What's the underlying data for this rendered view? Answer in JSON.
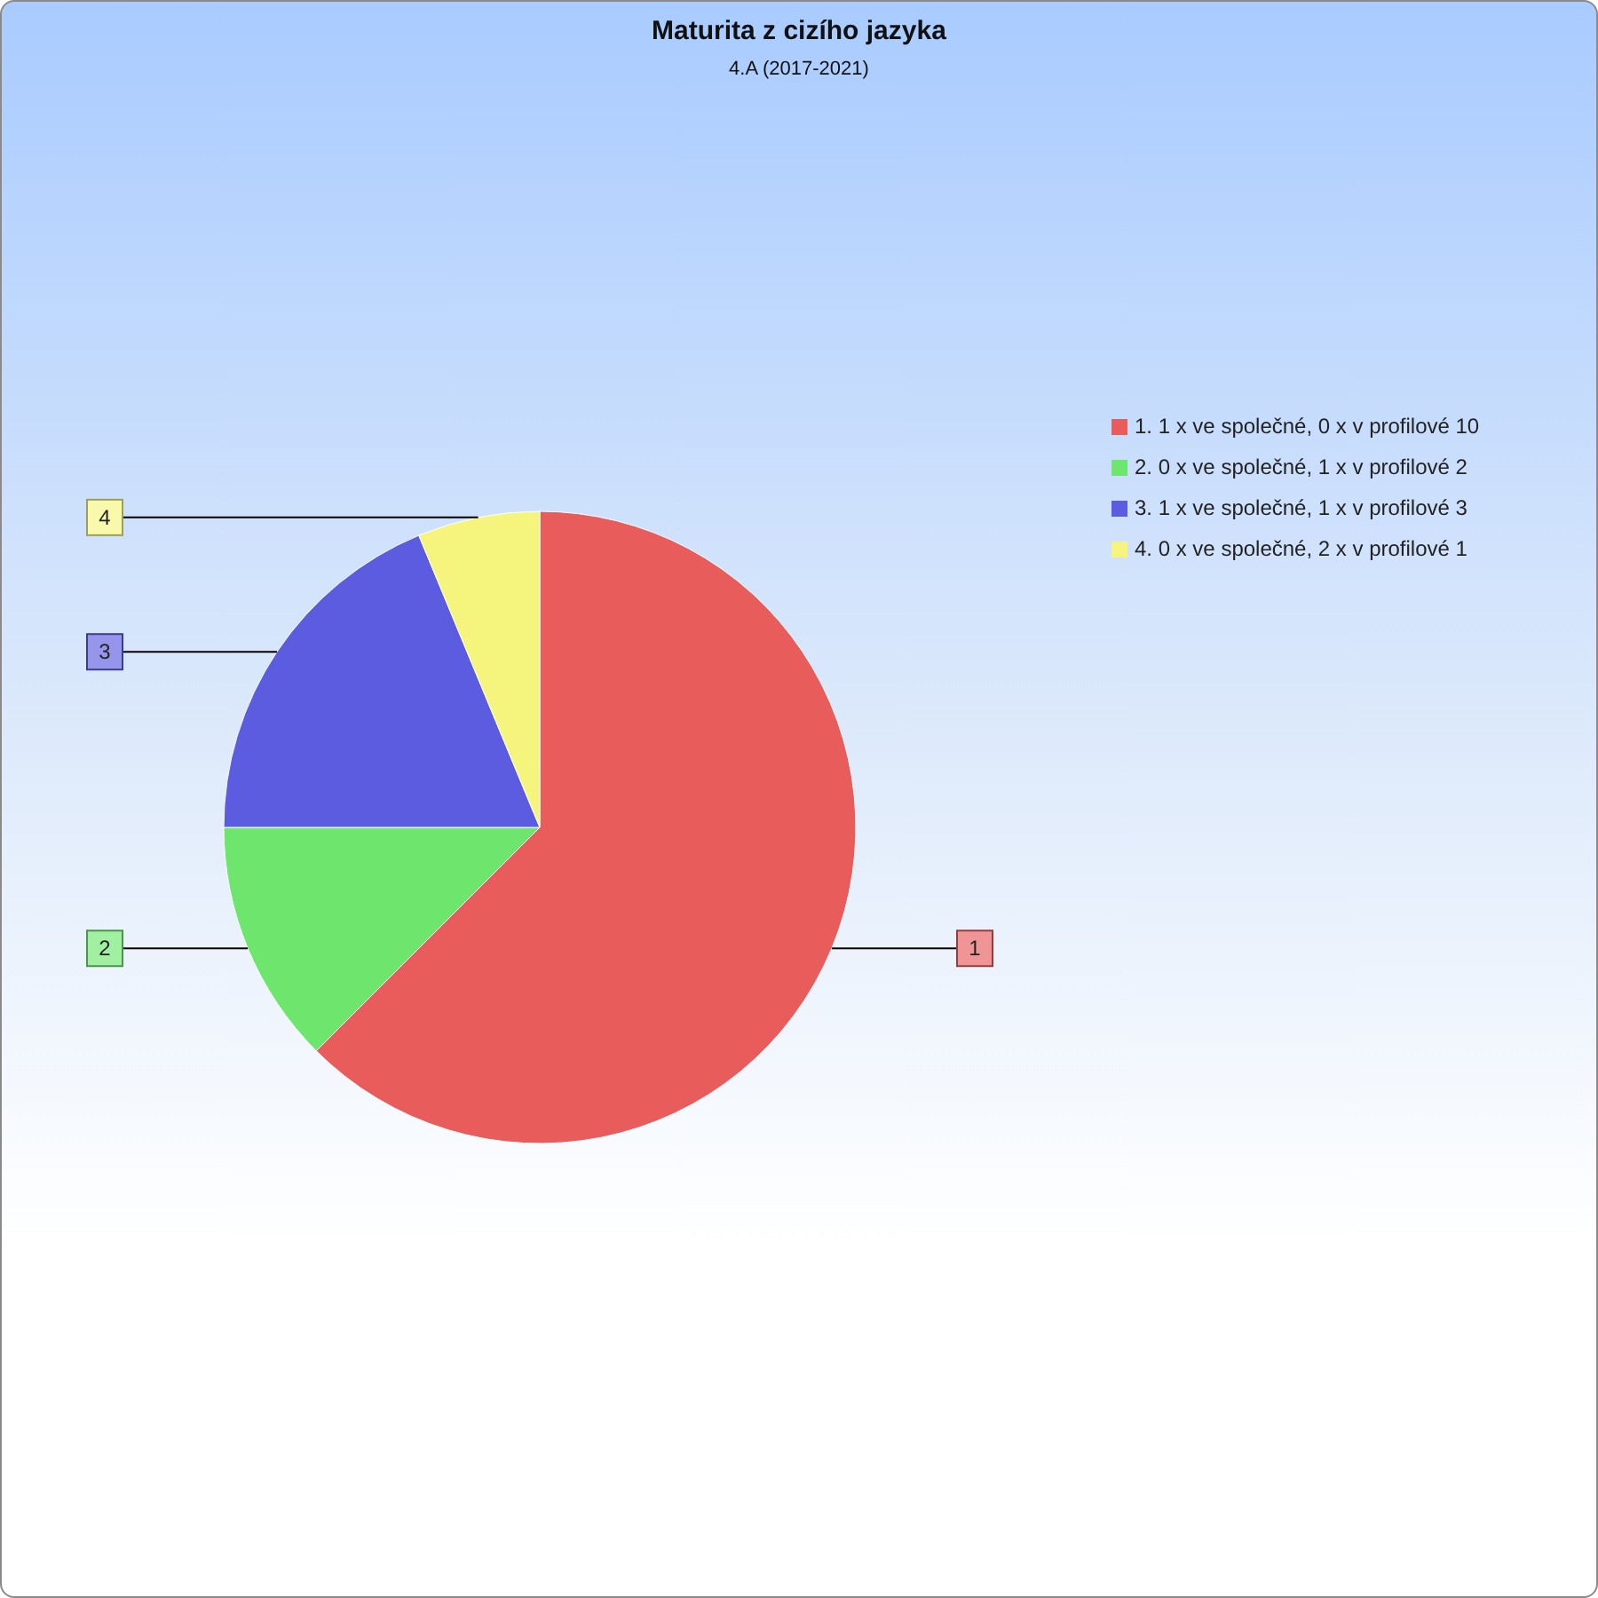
{
  "chart_data": {
    "type": "pie",
    "title": "Maturita z cizího jazyka",
    "subtitle": "4.A (2017-2021)",
    "categories": [
      "1. 1 x ve společné, 0 x v profilové 10",
      "2. 0 x ve společné, 1 x v profilové 2",
      "3. 1 x ve společné, 1 x v profilové 3",
      "4. 0 x ve společné, 2 x v profilové 1"
    ],
    "values": [
      10,
      2,
      3,
      1
    ],
    "colors": [
      "#e85c5c",
      "#6ee66e",
      "#5c5ce0",
      "#f5f57e"
    ],
    "legend": "right",
    "annotations": [
      {
        "text": "1",
        "x": "1. 1 x ve společné, 0 x v profilové 10"
      },
      {
        "text": "2",
        "x": "2. 0 x ve společné, 1 x v profilové 2"
      },
      {
        "text": "3",
        "x": "3. 1 x ve společné, 1 x v profilové 3"
      },
      {
        "text": "4",
        "x": "4. 0 x ve společné, 2 x v profilové 1"
      }
    ]
  }
}
